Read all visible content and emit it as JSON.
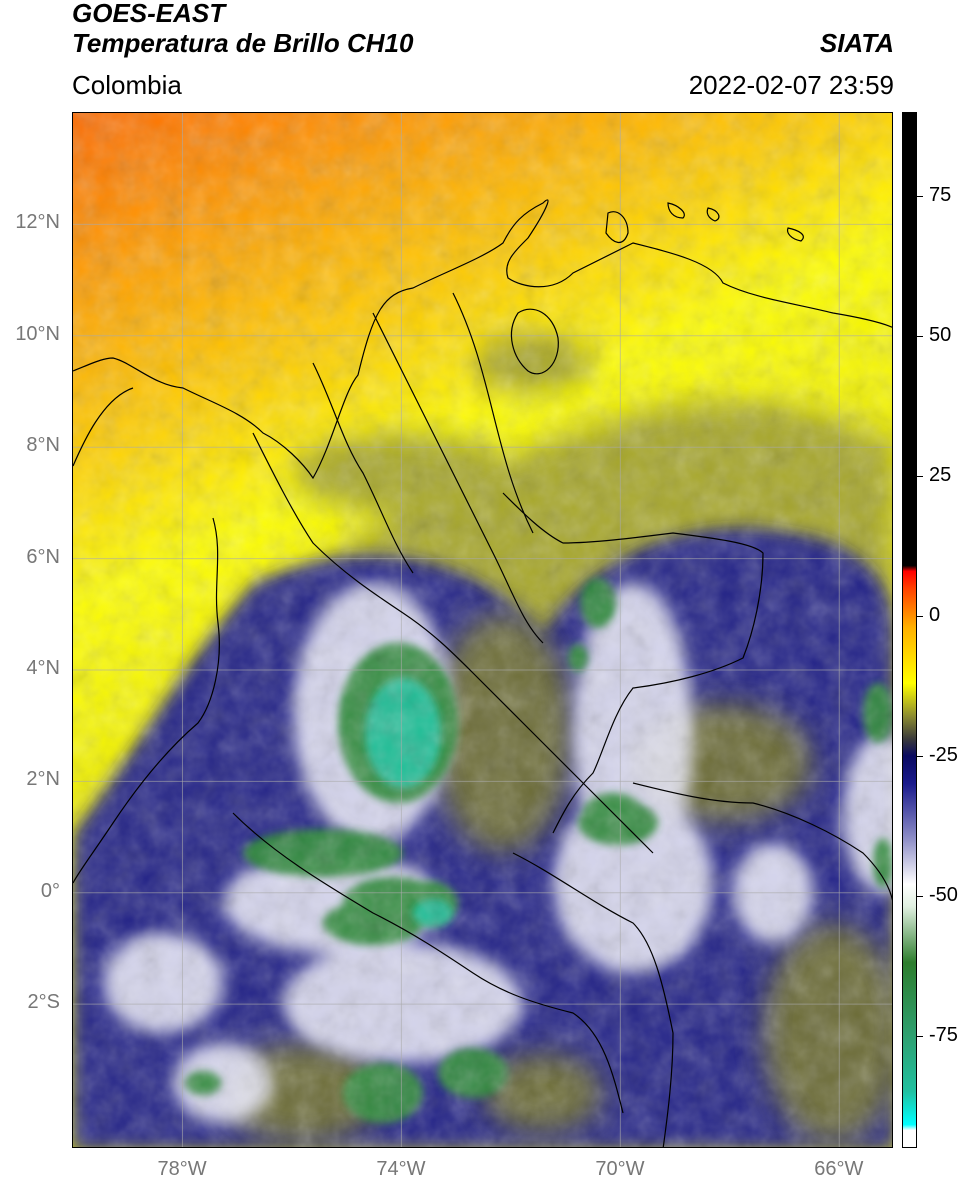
{
  "header": {
    "title_line1": "GOES-EAST",
    "title_line2": "Temperatura de Brillo CH10",
    "agency": "SIATA",
    "region": "Colombia",
    "timestamp": "2022-02-07 23:59"
  },
  "map": {
    "lat_labels": [
      "12°N",
      "10°N",
      "8°N",
      "6°N",
      "4°N",
      "2°N",
      "0°",
      "2°S"
    ],
    "lon_labels": [
      "78°W",
      "74°W",
      "70°W",
      "66°W"
    ],
    "lat_values": [
      12,
      10,
      8,
      6,
      4,
      2,
      0,
      -2
    ],
    "lon_values": [
      -78,
      -74,
      -70,
      -66
    ],
    "extent": {
      "lon_min": -80,
      "lon_max": -65,
      "lat_min": -4.6,
      "lat_max": 14.0
    },
    "gridline_color": "#aaaaaa",
    "coastline_color": "#000000"
  },
  "colorbar": {
    "tick_labels": [
      "75",
      "50",
      "25",
      "0",
      "-25",
      "-50",
      "-75"
    ],
    "tick_values": [
      75,
      50,
      25,
      0,
      -25,
      -50,
      -75
    ],
    "range": [
      -95,
      90
    ],
    "stops": [
      {
        "value": -95,
        "color": "#ffffff"
      },
      {
        "value": -92,
        "color": "#ffffff"
      },
      {
        "value": -91,
        "color": "#00ffff"
      },
      {
        "value": -85,
        "color": "#20c0a0"
      },
      {
        "value": -75,
        "color": "#2ea070"
      },
      {
        "value": -62,
        "color": "#2d7d2d"
      },
      {
        "value": -52,
        "color": "#e0f0e0"
      },
      {
        "value": -48,
        "color": "#ffffff"
      },
      {
        "value": -40,
        "color": "#9090c8"
      },
      {
        "value": -30,
        "color": "#1a1a8c"
      },
      {
        "value": -25,
        "color": "#0a0a60"
      },
      {
        "value": -22,
        "color": "#3a3a3a"
      },
      {
        "value": -18,
        "color": "#8a8a30"
      },
      {
        "value": -12,
        "color": "#ffff00"
      },
      {
        "value": -2,
        "color": "#ffb000"
      },
      {
        "value": 5,
        "color": "#ff4000"
      },
      {
        "value": 8,
        "color": "#ff0000"
      },
      {
        "value": 9,
        "color": "#000000"
      },
      {
        "value": 90,
        "color": "#000000"
      }
    ]
  }
}
